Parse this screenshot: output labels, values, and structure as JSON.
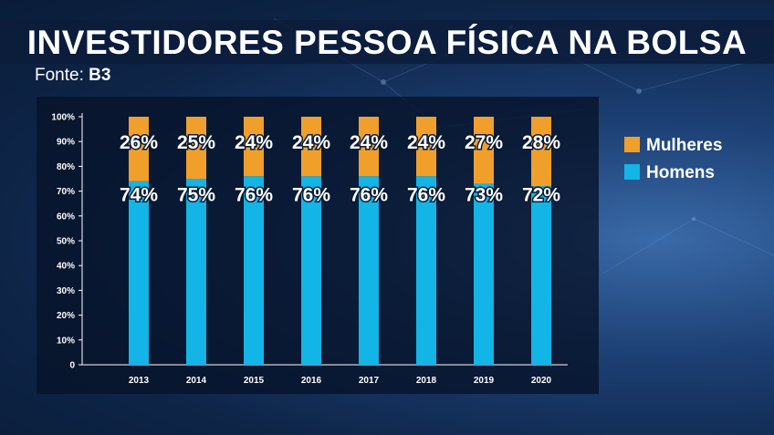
{
  "header": {
    "title": "INVESTIDORES PESSOA FÍSICA NA BOLSA",
    "source_label": "Fonte: ",
    "source_value": "B3"
  },
  "colors": {
    "mulheres": "#f0a02a",
    "homens": "#13b4e6"
  },
  "chart_data": {
    "type": "bar",
    "stacked": true,
    "categories": [
      "2013",
      "2014",
      "2015",
      "2016",
      "2017",
      "2018",
      "2019",
      "2020"
    ],
    "series": [
      {
        "name": "Homens",
        "values": [
          74,
          75,
          76,
          76,
          76,
          76,
          73,
          72
        ],
        "labels": [
          "74%",
          "75%",
          "76%",
          "76%",
          "76%",
          "76%",
          "73%",
          "72%"
        ]
      },
      {
        "name": "Mulheres",
        "values": [
          26,
          25,
          24,
          24,
          24,
          24,
          27,
          28
        ],
        "labels": [
          "26%",
          "25%",
          "24%",
          "24%",
          "24%",
          "24%",
          "27%",
          "28%"
        ]
      }
    ],
    "yticks": [
      "0",
      "10%",
      "20%",
      "30%",
      "40%",
      "50%",
      "60%",
      "70%",
      "80%",
      "90%",
      "100%"
    ],
    "ylim": [
      0,
      100
    ],
    "grid": false,
    "legend": {
      "position": "right",
      "entries": [
        "Mulheres",
        "Homens"
      ]
    }
  }
}
